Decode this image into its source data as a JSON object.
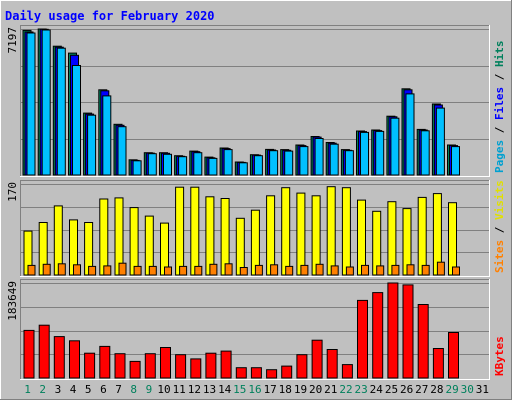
{
  "chart_data": {
    "type": "bar",
    "title": "Daily usage for February 2020",
    "categories": [
      "1",
      "2",
      "3",
      "4",
      "5",
      "6",
      "7",
      "8",
      "9",
      "10",
      "11",
      "12",
      "13",
      "14",
      "15",
      "16",
      "17",
      "18",
      "19",
      "20",
      "21",
      "22",
      "23",
      "24",
      "25",
      "26",
      "27",
      "28",
      "29",
      "30",
      "31"
    ],
    "weekend_days": [
      "1",
      "2",
      "8",
      "9",
      "15",
      "16",
      "22",
      "23",
      "29",
      "30"
    ],
    "panels": [
      {
        "id": "top",
        "max_label": "7197",
        "ylim": [
          0,
          7197
        ],
        "grid": true,
        "series": [
          {
            "name": "Hits",
            "color": "#00805c",
            "values": [
              7130,
              7197,
              6350,
              6010,
              3050,
              4200,
              2500,
              750,
              1100,
              1100,
              950,
              1180,
              880,
              1330,
              640,
              1000,
              1260,
              1250,
              1480,
              1900,
              1600,
              1250,
              2170,
              2220,
              2900,
              4250,
              2250,
              3500,
              1480,
              null,
              null
            ]
          },
          {
            "name": "Files",
            "color": "#0000ff",
            "values": [
              7050,
              7180,
              6300,
              5900,
              3000,
              4150,
              2450,
              720,
              1080,
              1070,
              920,
              1150,
              850,
              1300,
              620,
              980,
              1230,
              1220,
              1450,
              1870,
              1570,
              1220,
              2140,
              2190,
              2870,
              4200,
              2220,
              3450,
              1450,
              null,
              null
            ]
          },
          {
            "name": "Pages",
            "color": "#00c0ff",
            "values": [
              7000,
              7150,
              6250,
              5400,
              2950,
              3900,
              2380,
              700,
              1050,
              1020,
              900,
              1100,
              820,
              1250,
              600,
              950,
              1200,
              1180,
              1400,
              1800,
              1520,
              1200,
              2100,
              2150,
              2800,
              4000,
              2180,
              3300,
              1400,
              null,
              null
            ]
          }
        ]
      },
      {
        "id": "middle",
        "max_label": "170",
        "ylim": [
          0,
          170
        ],
        "grid": true,
        "series": [
          {
            "name": "Visits",
            "color": "#ffff00",
            "values": [
              82,
              98,
              129,
              103,
              98,
              142,
              144,
              126,
              110,
              97,
              164,
              164,
              146,
              143,
              106,
              121,
              148,
              163,
              153,
              148,
              165,
              163,
              140,
              119,
              137,
              124,
              145,
              152,
              135,
              null,
              null
            ]
          },
          {
            "name": "Sites",
            "color": "#ff8000",
            "values": [
              18,
              20,
              21,
              19,
              16,
              17,
              22,
              16,
              16,
              15,
              16,
              16,
              20,
              21,
              14,
              18,
              19,
              16,
              18,
              20,
              17,
              15,
              18,
              17,
              18,
              19,
              18,
              24,
              15,
              null,
              null
            ]
          }
        ]
      },
      {
        "id": "bottom",
        "max_label": "183649",
        "ylim": [
          0,
          183649
        ],
        "grid": true,
        "series": [
          {
            "name": "KBytes",
            "color": "#ff0000",
            "values": [
              92000,
              102000,
              80000,
              72000,
              48000,
              61000,
              47000,
              32000,
              47000,
              59000,
              45000,
              37000,
              48000,
              52000,
              20000,
              20000,
              16000,
              23000,
              45000,
              73000,
              55000,
              26000,
              150000,
              165000,
              183649,
              180000,
              142000,
              57000,
              88000,
              null,
              null
            ]
          }
        ]
      }
    ],
    "legend": {
      "placement": "right",
      "top": [
        {
          "text": "Pages",
          "color": "#00a0d0"
        },
        {
          "text": "Files",
          "color": "#0000ff"
        },
        {
          "text": "Hits",
          "color": "#00805c"
        }
      ],
      "middle": [
        {
          "text": "Sites",
          "color": "#ff8000"
        },
        {
          "text": "Visits",
          "color": "#e0e000"
        }
      ],
      "bottom": [
        {
          "text": "KBytes",
          "color": "#ff0000"
        }
      ]
    },
    "colors": {
      "background": "#c0c0c0",
      "title": "#0000ff",
      "weekend_label": "#00805c",
      "weekday_label": "#000000",
      "bar_outline": "#000000",
      "grid": "#808080"
    }
  }
}
